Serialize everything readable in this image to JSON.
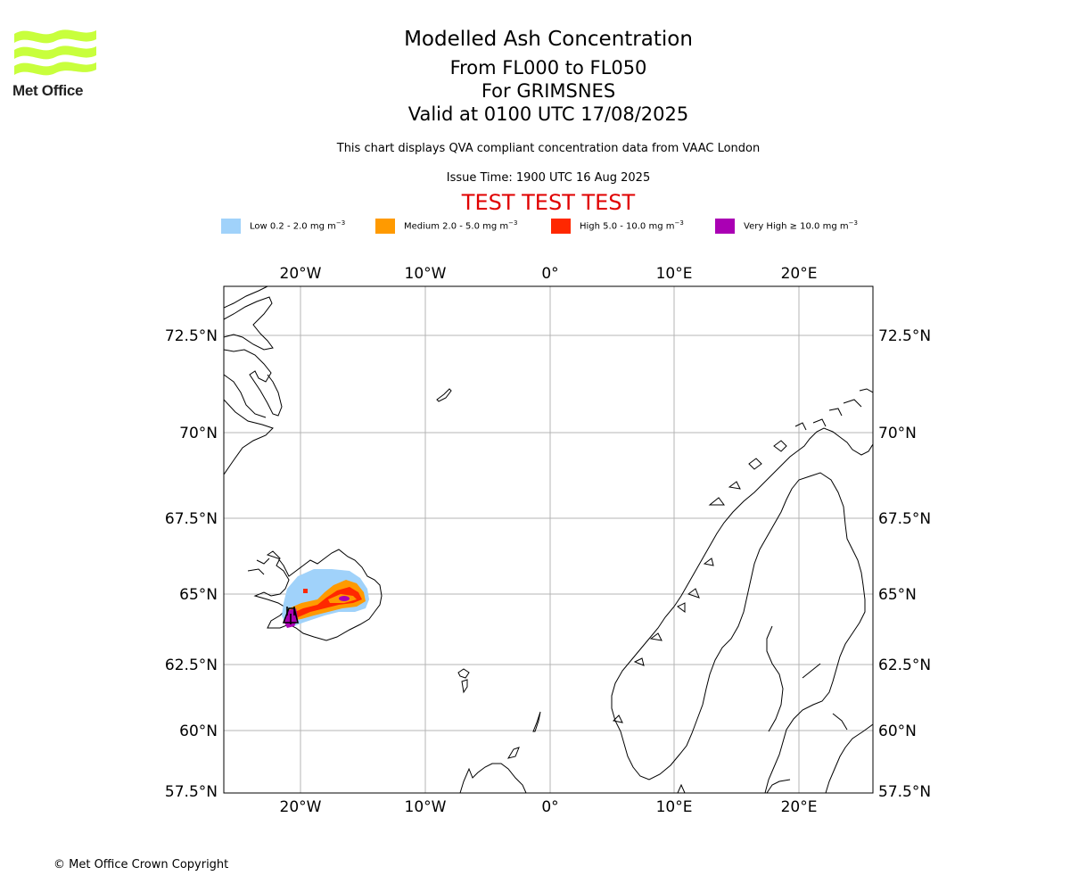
{
  "logo": {
    "text": "Met Office",
    "color": "#c8ff3c"
  },
  "title": {
    "main": "Modelled Ash Concentration",
    "levels": "From FL000 to FL050",
    "location": "For GRIMSNES",
    "valid": "Valid at 0100 UTC 17/08/2025"
  },
  "description": "This chart displays QVA compliant concentration data from VAAC London",
  "issue_time": "Issue Time: 1900 UTC 16 Aug 2025",
  "test_banner": "TEST TEST TEST",
  "legend": [
    {
      "label": "Low 0.2 - 2.0 mg m",
      "exp": "−3",
      "color": "#a0d2fa"
    },
    {
      "label": "Medium 2.0 - 5.0 mg m",
      "exp": "−3",
      "color": "#ff9a00"
    },
    {
      "label": "High 5.0 - 10.0 mg m",
      "exp": "−3",
      "color": "#ff2800"
    },
    {
      "label": "Very High  ≥  10.0 mg m",
      "exp": "−3",
      "color": "#aa00b4"
    }
  ],
  "axes": {
    "lon_labels": [
      "20°W",
      "10°W",
      "0°",
      "10°E",
      "20°E"
    ],
    "lat_labels": [
      "72.5°N",
      "70°N",
      "67.5°N",
      "65°N",
      "62.5°N",
      "60°N",
      "57.5°N"
    ]
  },
  "copyright": "© Met Office Crown Copyright"
}
